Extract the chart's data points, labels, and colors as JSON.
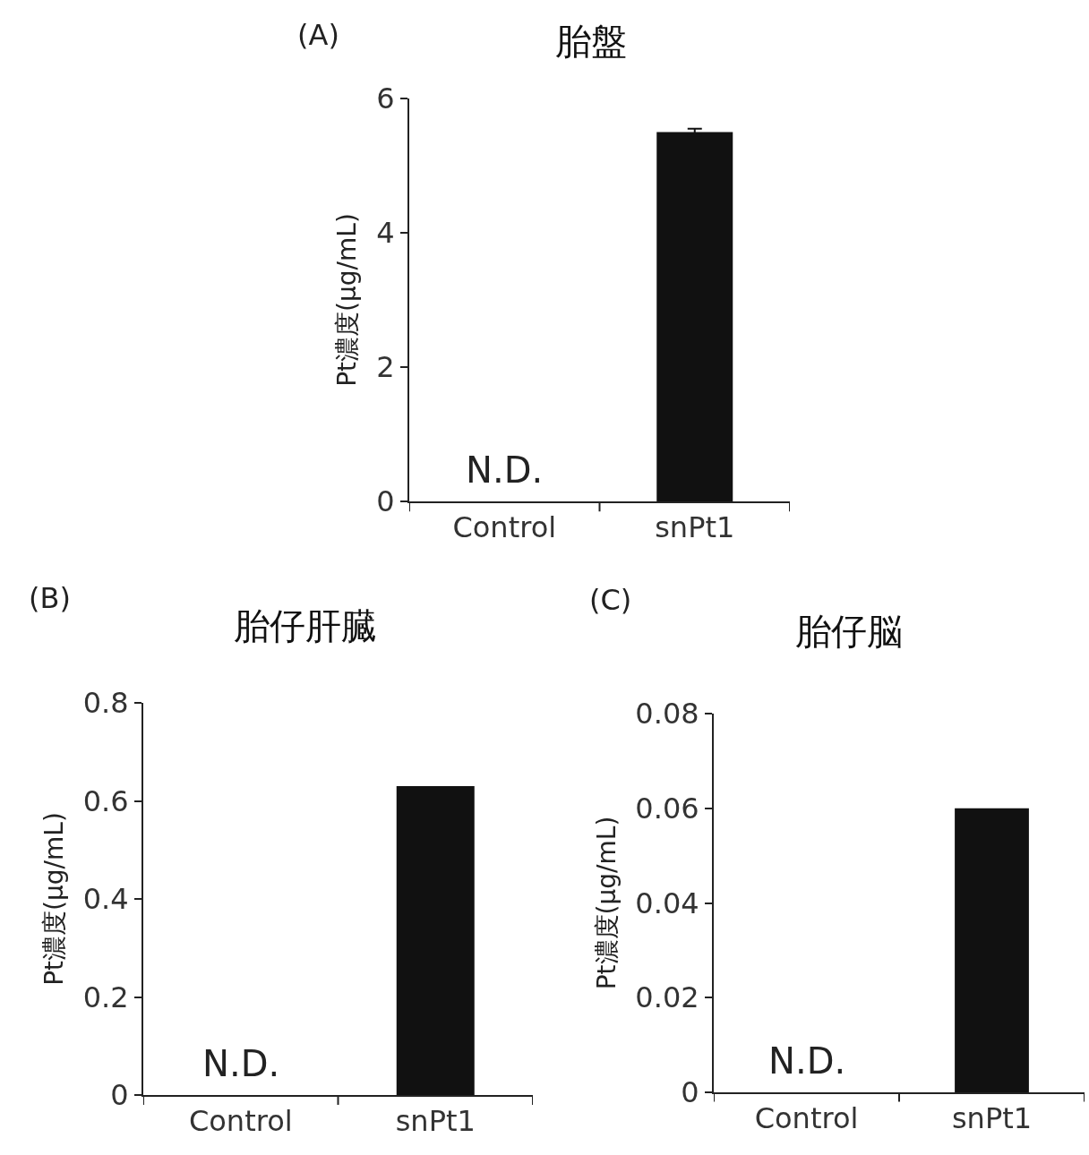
{
  "chart_data": [
    {
      "type": "bar",
      "title": "胎盤",
      "ylabel": "Pt濃度(μg/mL)",
      "categories": [
        "Control",
        "snPt1"
      ],
      "values": [
        null,
        5.5
      ],
      "errors": [
        null,
        0.05
      ],
      "color": "#111111",
      "ylim": [
        0,
        6
      ],
      "yticks": [
        0,
        2,
        4,
        6
      ],
      "grid": false,
      "legend": false,
      "annotations": [
        "(A)",
        "N.D."
      ]
    },
    {
      "type": "bar",
      "title": "胎仔肝臓",
      "ylabel": "Pt濃度(μg/mL)",
      "categories": [
        "Control",
        "snPt1"
      ],
      "values": [
        null,
        0.63
      ],
      "color": "#111111",
      "ylim": [
        0,
        0.8
      ],
      "yticks": [
        0,
        0.2,
        0.4,
        0.6,
        0.8
      ],
      "grid": false,
      "legend": false,
      "annotations": [
        "(B)",
        "N.D."
      ]
    },
    {
      "type": "bar",
      "title": "胎仔脳",
      "ylabel": "Pt濃度(μg/mL)",
      "categories": [
        "Control",
        "snPt1"
      ],
      "values": [
        null,
        0.06
      ],
      "color": "#111111",
      "ylim": [
        0,
        0.08
      ],
      "yticks": [
        0,
        0.02,
        0.04,
        0.06,
        0.08
      ],
      "grid": false,
      "legend": false,
      "annotations": [
        "(C)",
        "N.D."
      ]
    }
  ]
}
